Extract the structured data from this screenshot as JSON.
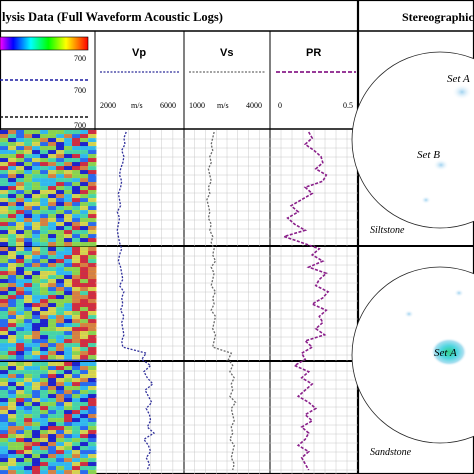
{
  "header": {
    "main_title": "lysis Data (Full Waveform Acoustic Logs)",
    "stereo_title": "Stereographic"
  },
  "legend": {
    "scale_end_1": "700",
    "scale_end_2": "700",
    "scale_end_3": "700"
  },
  "tracks": [
    {
      "name": "Vp",
      "min": "2000",
      "unit": "m/s",
      "max": "6000",
      "color": "#2f2f9a"
    },
    {
      "name": "Vs",
      "min": "1000",
      "unit": "m/s",
      "max": "4000",
      "color": "#6a6a6a"
    },
    {
      "name": "PR",
      "min": "0",
      "unit": "",
      "max": "0.5",
      "color": "#8a1f8a"
    }
  ],
  "stereonets": [
    {
      "lithology": "Siltstone",
      "labels": [
        "Set A",
        "Set B"
      ]
    },
    {
      "lithology": "Sandstone",
      "labels": [
        "Set A"
      ]
    }
  ],
  "chart_data": [
    {
      "type": "line",
      "title": "Vp",
      "xlabel": "m/s",
      "xlim": [
        2000,
        6000
      ],
      "series": [
        {
          "name": "Vp",
          "values": [
            3400,
            3300,
            3350,
            3200,
            3300,
            3250,
            3150,
            3100,
            3200,
            3150,
            3050,
            3100,
            3150,
            3000,
            3100,
            3050,
            3000,
            3050,
            3100,
            3200,
            3100,
            3050,
            3150,
            3200,
            3250,
            3100,
            3300,
            3200,
            3250,
            3150,
            3300,
            3200,
            3250,
            3300,
            3200,
            3250,
            4300,
            4100,
            4500,
            4200,
            4350,
            4600,
            4250,
            4400,
            4550,
            4300,
            4450,
            4500,
            4350,
            4650,
            4200,
            4400,
            4500,
            4300,
            4450,
            4350
          ]
        }
      ],
      "colors": [
        "#2f2f9a"
      ]
    },
    {
      "type": "line",
      "title": "Vs",
      "xlabel": "m/s",
      "xlim": [
        1000,
        4000
      ],
      "series": [
        {
          "name": "Vs",
          "values": [
            2050,
            2000,
            1950,
            2000,
            1900,
            1950,
            1850,
            1900,
            1950,
            1850,
            1900,
            1800,
            1850,
            1900,
            1850,
            1950,
            1900,
            2000,
            1950,
            2050,
            2000,
            2100,
            1950,
            2050,
            2000,
            1950,
            2100,
            2000,
            2050,
            1950,
            2100,
            2050,
            2000,
            2100,
            2050,
            2000,
            2650,
            2550,
            2700,
            2600,
            2750,
            2650,
            2700,
            2600,
            2800,
            2650,
            2700,
            2750,
            2650,
            2700,
            2600,
            2750,
            2700,
            2650,
            2750,
            2700
          ]
        }
      ],
      "colors": [
        "#6a6a6a"
      ]
    },
    {
      "type": "line",
      "title": "PR",
      "xlim": [
        0,
        0.5
      ],
      "series": [
        {
          "name": "PR",
          "values": [
            0.22,
            0.24,
            0.2,
            0.25,
            0.29,
            0.3,
            0.26,
            0.32,
            0.3,
            0.2,
            0.24,
            0.18,
            0.12,
            0.16,
            0.1,
            0.14,
            0.2,
            0.08,
            0.18,
            0.28,
            0.24,
            0.3,
            0.22,
            0.32,
            0.28,
            0.26,
            0.33,
            0.3,
            0.24,
            0.32,
            0.28,
            0.3,
            0.26,
            0.31,
            0.2,
            0.24,
            0.18,
            0.2,
            0.14,
            0.22,
            0.18,
            0.24,
            0.2,
            0.16,
            0.22,
            0.26,
            0.2,
            0.24,
            0.18,
            0.22,
            0.2,
            0.16,
            0.22,
            0.18,
            0.2,
            0.22
          ]
        }
      ],
      "colors": [
        "#8a1f8a"
      ]
    }
  ]
}
